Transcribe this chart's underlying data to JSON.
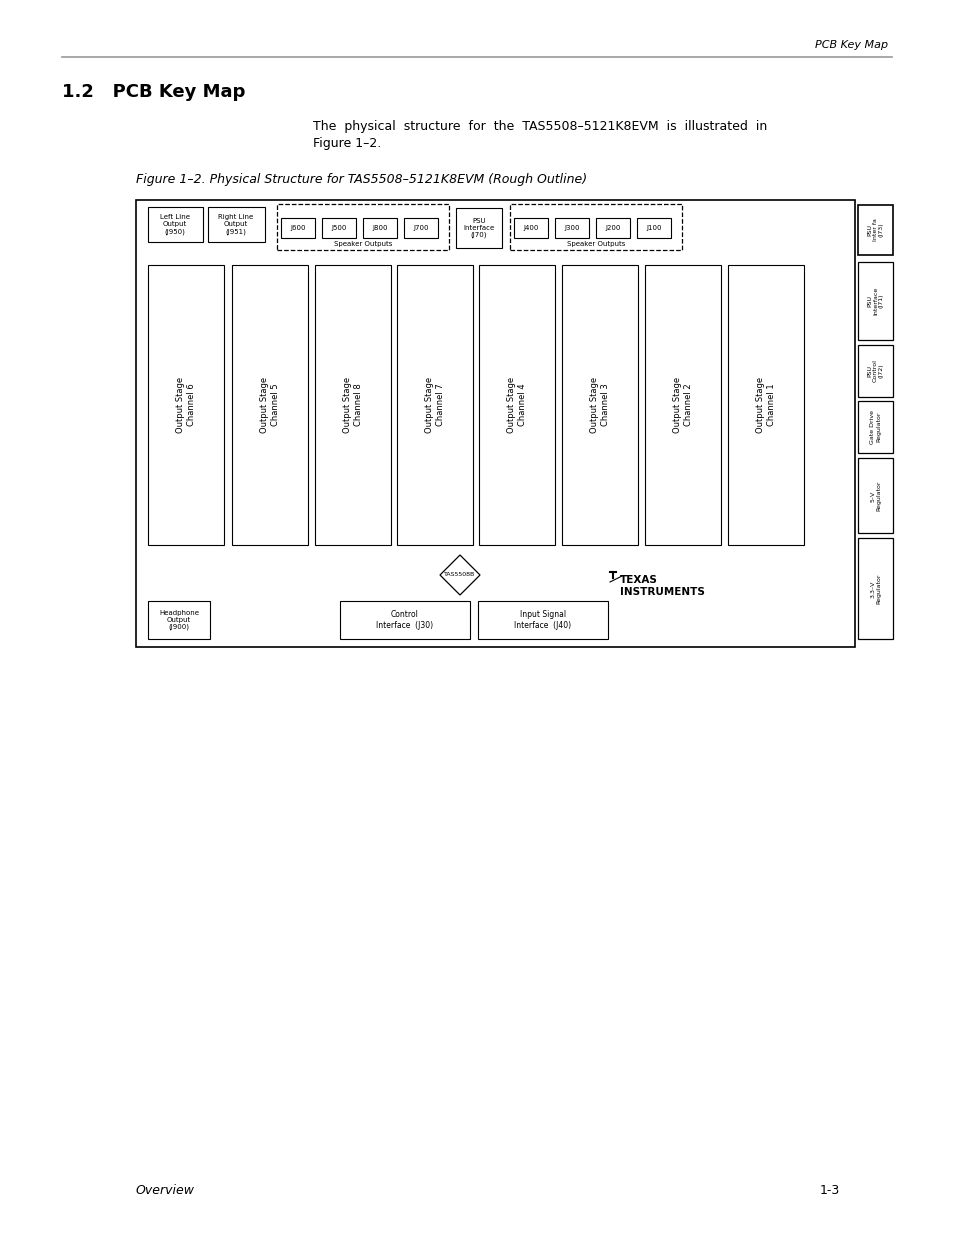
{
  "page_header": "PCB Key Map",
  "section_title": "1.2   PCB Key Map",
  "footer_left": "Overview",
  "footer_right": "1-3",
  "bg_color": "#ffffff"
}
